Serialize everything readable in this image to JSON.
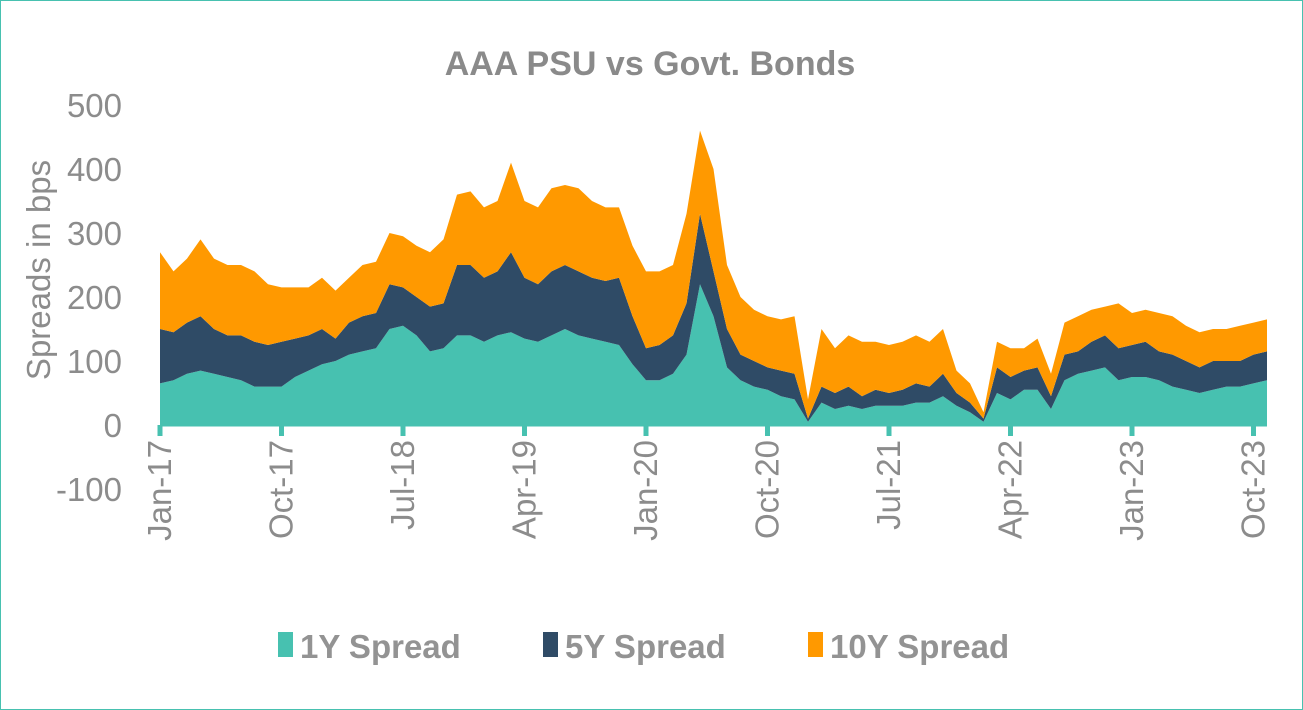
{
  "chart_data": {
    "type": "area",
    "stacked": true,
    "title": "AAA PSU vs Govt. Bonds",
    "xlabel": "",
    "ylabel": "Spreads in bps",
    "ylim": [
      -100,
      500
    ],
    "yticks": [
      "-100",
      "0",
      "100",
      "200",
      "300",
      "400",
      "500"
    ],
    "xtick_labels": [
      "Jan-17",
      "Oct-17",
      "Jul-18",
      "Apr-19",
      "Jan-20",
      "Oct-20",
      "Jul-21",
      "Apr-22",
      "Jan-23",
      "Oct-23"
    ],
    "xtick_dates": [
      "2017-01",
      "2017-10",
      "2018-07",
      "2019-04",
      "2020-01",
      "2020-10",
      "2021-07",
      "2022-04",
      "2023-01",
      "2023-10"
    ],
    "grid": false,
    "legend_position": "bottom",
    "x": [
      "2017-01",
      "2017-02",
      "2017-03",
      "2017-04",
      "2017-05",
      "2017-06",
      "2017-07",
      "2017-08",
      "2017-09",
      "2017-10",
      "2017-11",
      "2017-12",
      "2018-01",
      "2018-02",
      "2018-03",
      "2018-04",
      "2018-05",
      "2018-06",
      "2018-07",
      "2018-08",
      "2018-09",
      "2018-10",
      "2018-11",
      "2018-12",
      "2019-01",
      "2019-02",
      "2019-03",
      "2019-04",
      "2019-05",
      "2019-06",
      "2019-07",
      "2019-08",
      "2019-09",
      "2019-10",
      "2019-11",
      "2019-12",
      "2020-01",
      "2020-02",
      "2020-03",
      "2020-04",
      "2020-05",
      "2020-06",
      "2020-07",
      "2020-08",
      "2020-09",
      "2020-10",
      "2020-11",
      "2020-12",
      "2021-01",
      "2021-02",
      "2021-03",
      "2021-04",
      "2021-05",
      "2021-06",
      "2021-07",
      "2021-08",
      "2021-09",
      "2021-10",
      "2021-11",
      "2021-12",
      "2022-01",
      "2022-02",
      "2022-03",
      "2022-04",
      "2022-05",
      "2022-06",
      "2022-07",
      "2022-08",
      "2022-09",
      "2022-10",
      "2022-11",
      "2022-12",
      "2023-01",
      "2023-02",
      "2023-03",
      "2023-04",
      "2023-05",
      "2023-06",
      "2023-07",
      "2023-08",
      "2023-09",
      "2023-10",
      "2023-11"
    ],
    "series": [
      {
        "name": "1Y Spread",
        "color": "#47C1B0",
        "values": [
          65,
          70,
          80,
          85,
          80,
          75,
          70,
          60,
          60,
          60,
          75,
          85,
          95,
          100,
          110,
          115,
          120,
          150,
          155,
          140,
          115,
          120,
          140,
          140,
          130,
          140,
          145,
          135,
          130,
          140,
          150,
          140,
          135,
          130,
          125,
          95,
          70,
          70,
          80,
          110,
          220,
          170,
          90,
          70,
          60,
          55,
          45,
          40,
          5,
          35,
          25,
          30,
          25,
          30,
          30,
          30,
          35,
          35,
          45,
          30,
          20,
          5,
          50,
          40,
          55,
          55,
          25,
          70,
          80,
          85,
          90,
          70,
          75,
          75,
          70,
          60,
          55,
          50,
          55,
          60,
          60,
          65,
          70
        ]
      },
      {
        "name": "5Y Spread",
        "color": "#2F4B66",
        "values": [
          85,
          75,
          80,
          85,
          70,
          65,
          70,
          70,
          65,
          70,
          60,
          55,
          55,
          35,
          50,
          55,
          55,
          70,
          60,
          60,
          70,
          70,
          110,
          110,
          100,
          100,
          125,
          95,
          90,
          100,
          100,
          100,
          95,
          95,
          105,
          75,
          50,
          55,
          60,
          80,
          110,
          70,
          60,
          40,
          40,
          35,
          40,
          40,
          5,
          25,
          25,
          30,
          20,
          25,
          20,
          25,
          30,
          25,
          35,
          20,
          15,
          5,
          40,
          35,
          30,
          35,
          20,
          40,
          35,
          45,
          50,
          50,
          50,
          55,
          45,
          50,
          45,
          40,
          45,
          40,
          40,
          45,
          45
        ]
      },
      {
        "name": "10Y Spread",
        "color": "#FF9900",
        "values": [
          120,
          95,
          100,
          120,
          110,
          110,
          110,
          110,
          95,
          85,
          80,
          75,
          80,
          75,
          70,
          80,
          80,
          80,
          80,
          80,
          85,
          100,
          110,
          115,
          110,
          110,
          140,
          120,
          120,
          130,
          125,
          130,
          120,
          115,
          110,
          110,
          120,
          115,
          110,
          140,
          130,
          160,
          100,
          90,
          80,
          80,
          80,
          90,
          30,
          90,
          70,
          80,
          85,
          75,
          75,
          75,
          75,
          70,
          70,
          35,
          30,
          10,
          40,
          45,
          35,
          45,
          35,
          50,
          55,
          50,
          45,
          70,
          50,
          50,
          60,
          60,
          55,
          55,
          50,
          50,
          55,
          50,
          50
        ]
      }
    ]
  },
  "colors": {
    "text": "#8c8c8c",
    "axis": "#47C1B0",
    "border": "#47C1B0"
  }
}
